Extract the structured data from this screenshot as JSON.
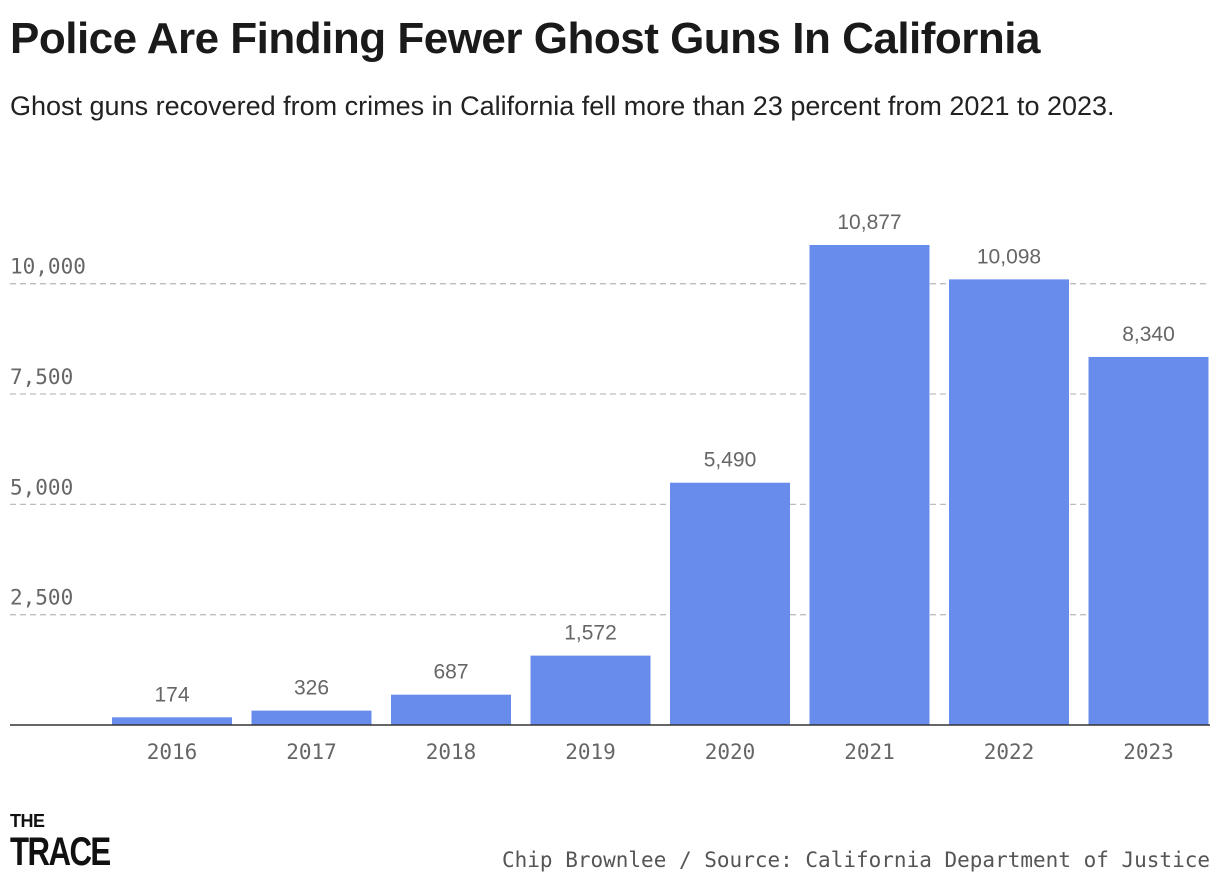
{
  "chart_data": {
    "type": "bar",
    "title": "Police Are Finding Fewer Ghost Guns In California",
    "subtitle": "Ghost guns recovered from crimes in California fell more than 23 percent from 2021 to 2023.",
    "categories": [
      "2016",
      "2017",
      "2018",
      "2019",
      "2020",
      "2021",
      "2022",
      "2023"
    ],
    "values": [
      174,
      326,
      687,
      1572,
      5490,
      10877,
      10098,
      8340
    ],
    "value_labels": [
      "174",
      "326",
      "687",
      "1,572",
      "5,490",
      "10,877",
      "10,098",
      "8,340"
    ],
    "y_ticks": [
      2500,
      5000,
      7500,
      10000
    ],
    "y_tick_labels": [
      "2,500",
      "5,000",
      "7,500",
      "10,000"
    ],
    "ylim": [
      0,
      10877
    ],
    "grid": true,
    "bar_color": "#688cec"
  },
  "footer": {
    "logo_line1": "THE",
    "logo_line2": "TRACE",
    "credit": "Chip Brownlee / Source: California Department of Justice"
  }
}
